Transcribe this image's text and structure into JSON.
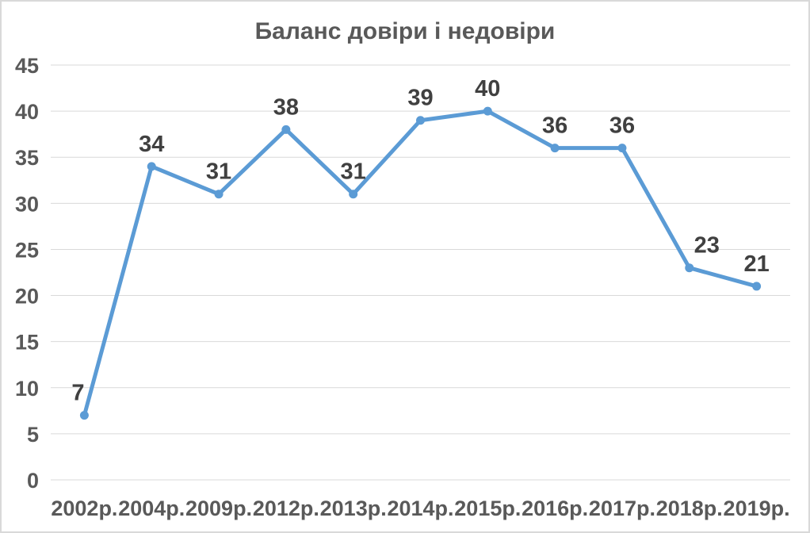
{
  "chart_data": {
    "type": "line",
    "title": "Баланс довіри і недовіри",
    "categories": [
      "2002р.",
      "2004р.",
      "2009р.",
      "2012р.",
      "2013р.",
      "2014р.",
      "2015р.",
      "2016р.",
      "2017р.",
      "2018р.",
      "2019р."
    ],
    "values": [
      7,
      34,
      31,
      38,
      31,
      39,
      40,
      36,
      36,
      23,
      21
    ],
    "xlabel": "",
    "ylabel": "",
    "ylim": [
      0,
      45
    ],
    "ytick_step": 5,
    "grid": true,
    "legend_position": "none",
    "data_labels_shown": true,
    "colors": {
      "line": "#5B9BD5",
      "marker": "#5B9BD5",
      "data_label": "#404040",
      "axis_text": "#595959",
      "title_text": "#595959",
      "gridline": "#D9D9D9",
      "border": "#D9D9D9",
      "background": "#FFFFFF"
    }
  }
}
